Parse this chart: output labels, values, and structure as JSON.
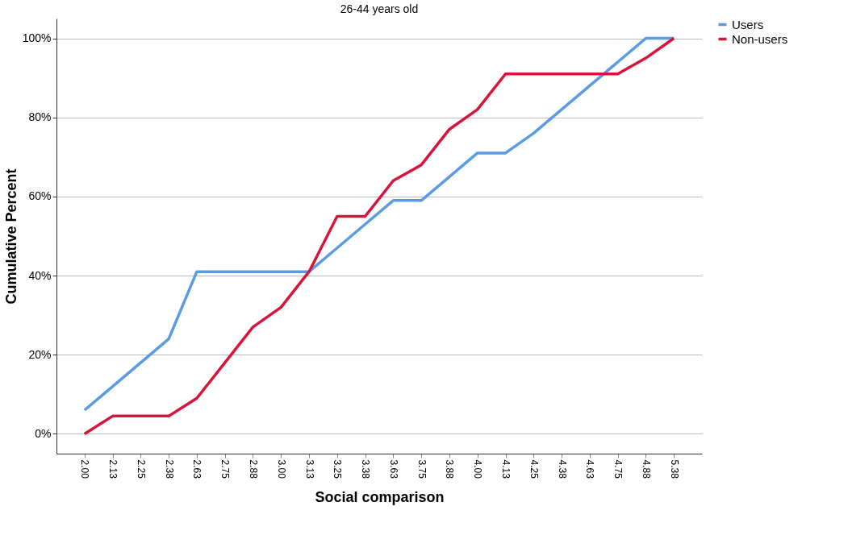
{
  "chart_data": {
    "type": "line",
    "title": "26-44 years old",
    "xlabel": "Social comparison",
    "ylabel": "Cumulative Percent",
    "categories": [
      "2.00",
      "2.13",
      "2.25",
      "2.38",
      "2.63",
      "2.75",
      "2.88",
      "3.00",
      "3.13",
      "3.25",
      "3.38",
      "3.63",
      "3.75",
      "3.88",
      "4.00",
      "4.13",
      "4.25",
      "4.38",
      "4.63",
      "4.75",
      "4.88",
      "5.38"
    ],
    "series": [
      {
        "name": "Users",
        "color": "#5b9be6",
        "values": [
          6,
          12,
          18,
          24,
          41,
          41,
          41,
          41,
          41,
          47,
          53,
          59,
          59,
          65,
          71,
          71,
          76,
          82,
          88,
          94,
          100,
          100
        ]
      },
      {
        "name": "Non-users",
        "color": "#d6143c",
        "values": [
          0,
          4.5,
          4.5,
          4.5,
          9,
          18,
          27,
          32,
          41,
          55,
          55,
          64,
          68,
          77,
          82,
          91,
          91,
          91,
          91,
          91,
          95,
          100
        ]
      }
    ],
    "ylim": [
      -5,
      105
    ],
    "yticks": [
      {
        "value": 0,
        "label": "0%"
      },
      {
        "value": 20,
        "label": "20%"
      },
      {
        "value": 40,
        "label": "40%"
      },
      {
        "value": 60,
        "label": "60%"
      },
      {
        "value": 80,
        "label": "80%"
      },
      {
        "value": 100,
        "label": "100%"
      }
    ],
    "grid": "y",
    "legend": "top right",
    "marker": "none",
    "line_style": "solid"
  }
}
